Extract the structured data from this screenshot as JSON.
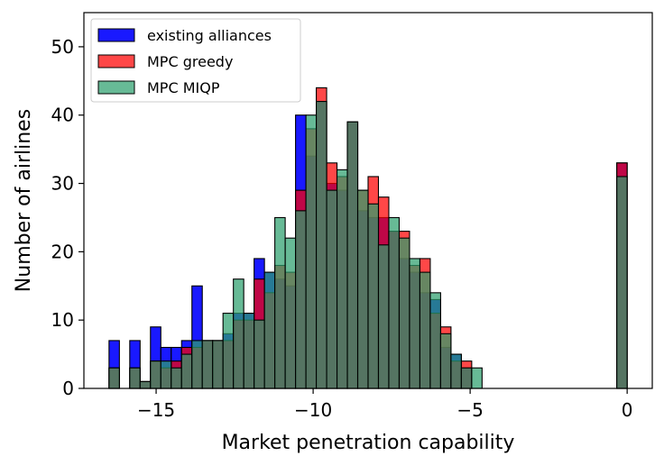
{
  "chart_data": {
    "type": "bar",
    "subtype": "overlapping-histogram",
    "title": "",
    "xlabel": "Market penetration capability",
    "ylabel": "Number of airlines",
    "xlim": [
      -17.3,
      0.8
    ],
    "ylim": [
      0,
      55
    ],
    "xticks": [
      -15,
      -10,
      -5,
      0
    ],
    "xtick_labels": [
      "−15",
      "−10",
      "−5",
      "0"
    ],
    "yticks": [
      0,
      10,
      20,
      30,
      40,
      50
    ],
    "ytick_labels": [
      "0",
      "10",
      "20",
      "30",
      "40",
      "50"
    ],
    "grid": false,
    "legend_position": "top-left",
    "bin_width": 0.33,
    "bin_starts": [
      -16.5,
      -16.17,
      -15.84,
      -15.51,
      -15.18,
      -14.85,
      -14.52,
      -14.19,
      -13.86,
      -13.53,
      -13.2,
      -12.87,
      -12.54,
      -12.21,
      -11.88,
      -11.55,
      -11.22,
      -10.89,
      -10.56,
      -10.23,
      -9.9,
      -9.57,
      -9.24,
      -8.91,
      -8.58,
      -8.25,
      -7.92,
      -7.59,
      -7.26,
      -6.93,
      -6.6,
      -6.27,
      -5.94,
      -5.61,
      -5.28,
      -4.95,
      -0.33
    ],
    "series": [
      {
        "name": "existing alliances",
        "color": "#0000ff",
        "values": [
          7,
          0,
          7,
          1,
          9,
          6,
          6,
          7,
          15,
          7,
          7,
          8,
          11,
          11,
          19,
          17,
          16,
          15,
          40,
          34,
          42,
          30,
          29,
          39,
          26,
          25,
          25,
          23,
          19,
          17,
          14,
          13,
          6,
          5,
          3,
          0,
          33
        ]
      },
      {
        "name": "MPC greedy",
        "color": "#ff0000",
        "values": [
          3,
          0,
          3,
          1,
          4,
          3,
          4,
          6,
          6,
          7,
          7,
          7,
          10,
          10,
          16,
          14,
          18,
          17,
          29,
          38,
          44,
          33,
          31,
          39,
          29,
          31,
          28,
          23,
          23,
          18,
          19,
          11,
          9,
          4,
          4,
          0,
          33
        ]
      },
      {
        "name": "MPC MIQP",
        "color": "#2ca06e",
        "values": [
          3,
          0,
          3,
          1,
          4,
          4,
          3,
          5,
          7,
          7,
          7,
          11,
          16,
          11,
          10,
          17,
          25,
          22,
          26,
          40,
          42,
          29,
          32,
          39,
          29,
          27,
          21,
          25,
          22,
          19,
          17,
          14,
          8,
          5,
          3,
          3,
          31
        ]
      }
    ]
  }
}
